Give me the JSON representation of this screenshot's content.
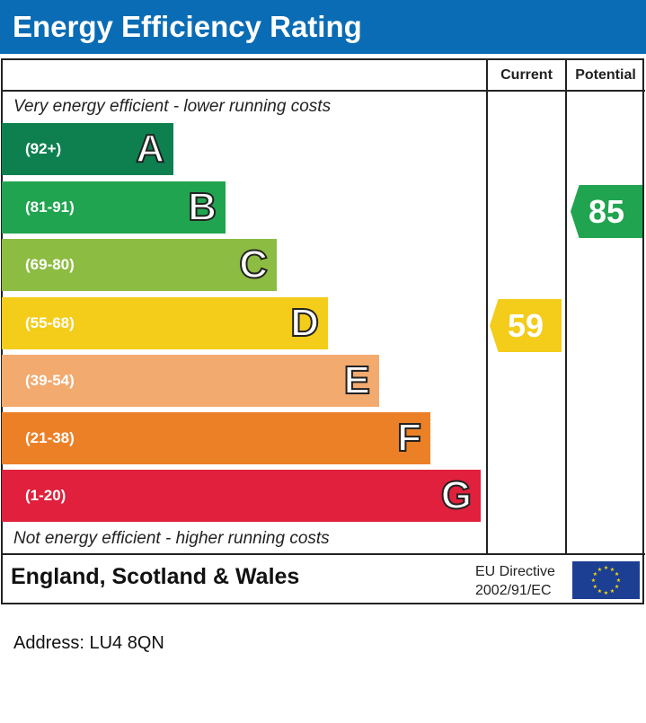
{
  "chart_data": {
    "type": "bar",
    "title": "Energy Efficiency Rating",
    "columns": [
      "Current",
      "Potential"
    ],
    "top_note": "Very energy efficient - lower running costs",
    "bottom_note": "Not energy efficient - higher running costs",
    "bands": [
      {
        "letter": "A",
        "range": "(92+)",
        "color": "#0e8050"
      },
      {
        "letter": "B",
        "range": "(81-91)",
        "color": "#21a450"
      },
      {
        "letter": "C",
        "range": "(69-80)",
        "color": "#8cbc42"
      },
      {
        "letter": "D",
        "range": "(55-68)",
        "color": "#f4cc1a"
      },
      {
        "letter": "E",
        "range": "(39-54)",
        "color": "#f2aa6e"
      },
      {
        "letter": "F",
        "range": "(21-38)",
        "color": "#ec8027"
      },
      {
        "letter": "G",
        "range": "(1-20)",
        "color": "#e0203c"
      }
    ],
    "current": {
      "value": "59",
      "band": "D",
      "color": "#f4cc1a"
    },
    "potential": {
      "value": "85",
      "band": "B",
      "color": "#21a450"
    }
  },
  "footer": {
    "region": "England, Scotland & Wales",
    "directive_line1": "EU Directive",
    "directive_line2": "2002/91/EC"
  },
  "address": "Address: LU4 8QN",
  "colors": {
    "header": "#0a6cb4"
  }
}
